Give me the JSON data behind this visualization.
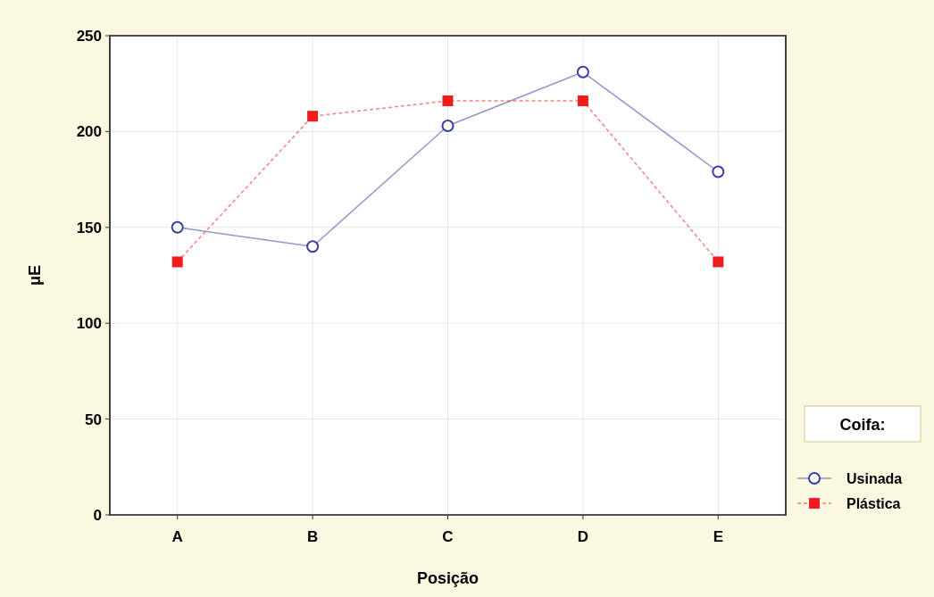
{
  "chart_data": {
    "type": "line",
    "xlabel": "Posição",
    "ylabel": "μE",
    "legend_title": "Coifa:",
    "categories": [
      "A",
      "B",
      "C",
      "D",
      "E"
    ],
    "ylim": [
      0,
      250
    ],
    "yticks": [
      0,
      50,
      100,
      150,
      200,
      250
    ],
    "grid": true,
    "legend": "bottom right",
    "series": [
      {
        "name": "Usinada",
        "color": "#3a3f9e",
        "values": [
          150,
          140,
          203,
          231,
          179
        ],
        "marker": "circle",
        "line_style": "solid"
      },
      {
        "name": "Plástica",
        "color": "#ee1c1c",
        "values": [
          132,
          208,
          216,
          216,
          132
        ],
        "marker": "square",
        "line_style": "dashed"
      }
    ]
  }
}
